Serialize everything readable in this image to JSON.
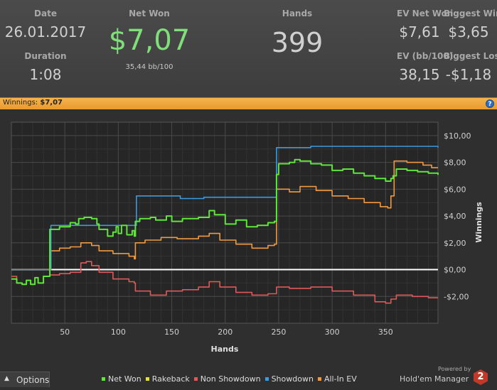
{
  "stats": {
    "date_label": "Date",
    "date_value": "26.01.2017",
    "duration_label": "Duration",
    "duration_value": "1:08",
    "net_won_label": "Net Won",
    "net_won_value": "$7,07",
    "bb_per_100": "35,44 bb/100",
    "hands_label": "Hands",
    "hands_value": "399",
    "ev_net_won_label": "EV Net Won",
    "ev_net_won_value": "$7,61",
    "biggest_win_label": "Biggest Win",
    "biggest_win_value": "$3,65",
    "ev_bb_label": "EV (bb/100)",
    "ev_bb_value": "38,15",
    "biggest_loss_label": "Biggest Loss",
    "biggest_loss_value": "-$1,18"
  },
  "bar": {
    "label": "Winnings:",
    "value": "$7,07",
    "help": "?"
  },
  "options_label": "Options",
  "brand": {
    "powered_by": "Powered by",
    "name": "Hold'em Manager",
    "logo": "2"
  },
  "colors": {
    "net_won": "#5ee63a",
    "rakeback": "#e8e03a",
    "non_showdown": "#e0585a",
    "showdown": "#3d9ade",
    "all_in_ev": "#ef9a42",
    "accent_green": "#7fe07a",
    "bar_orange": "#f0a640"
  },
  "chart_data": {
    "type": "line",
    "xlabel": "Hands",
    "ylabel": "Winnings",
    "xlim": [
      0,
      399
    ],
    "ylim": [
      -4,
      11
    ],
    "x_ticks": [
      50,
      100,
      150,
      200,
      250,
      300,
      350
    ],
    "y_ticks": [
      -2,
      0,
      2,
      4,
      6,
      8,
      10
    ],
    "y_tick_labels": [
      "-$2,00",
      "$0,00",
      "$2,00",
      "$4,00",
      "$6,00",
      "$8,00",
      "$10,00"
    ],
    "grid": true,
    "legend_position": "bottom",
    "series": [
      {
        "name": "Net Won",
        "key": "net_won",
        "points": [
          [
            0,
            -0.7
          ],
          [
            5,
            -1.0
          ],
          [
            10,
            -1.1
          ],
          [
            14,
            -0.8
          ],
          [
            18,
            -1.1
          ],
          [
            22,
            -0.6
          ],
          [
            25,
            -1.0
          ],
          [
            30,
            -0.5
          ],
          [
            35,
            -0.5
          ],
          [
            36,
            3.0
          ],
          [
            45,
            3.2
          ],
          [
            55,
            3.5
          ],
          [
            60,
            3.4
          ],
          [
            63,
            3.8
          ],
          [
            68,
            3.9
          ],
          [
            75,
            3.8
          ],
          [
            80,
            3.4
          ],
          [
            82,
            3.0
          ],
          [
            90,
            2.5
          ],
          [
            95,
            2.8
          ],
          [
            98,
            3.2
          ],
          [
            100,
            2.7
          ],
          [
            103,
            3.3
          ],
          [
            108,
            2.6
          ],
          [
            113,
            2.9
          ],
          [
            115,
            2.5
          ],
          [
            116,
            3.6
          ],
          [
            120,
            3.8
          ],
          [
            130,
            3.9
          ],
          [
            135,
            3.7
          ],
          [
            145,
            4.0
          ],
          [
            150,
            3.6
          ],
          [
            160,
            3.8
          ],
          [
            175,
            3.9
          ],
          [
            185,
            4.4
          ],
          [
            190,
            4.1
          ],
          [
            200,
            3.4
          ],
          [
            210,
            3.7
          ],
          [
            220,
            3.2
          ],
          [
            230,
            3.3
          ],
          [
            240,
            3.5
          ],
          [
            246,
            3.6
          ],
          [
            248,
            7.1
          ],
          [
            250,
            7.9
          ],
          [
            260,
            8.0
          ],
          [
            265,
            8.2
          ],
          [
            270,
            8.1
          ],
          [
            280,
            7.9
          ],
          [
            290,
            7.8
          ],
          [
            300,
            7.4
          ],
          [
            310,
            7.5
          ],
          [
            320,
            7.2
          ],
          [
            330,
            7.0
          ],
          [
            340,
            6.8
          ],
          [
            350,
            6.6
          ],
          [
            355,
            6.8
          ],
          [
            357,
            7.0
          ],
          [
            360,
            7.5
          ],
          [
            370,
            7.4
          ],
          [
            380,
            7.3
          ],
          [
            390,
            7.2
          ],
          [
            399,
            7.07
          ]
        ]
      },
      {
        "name": "Showdown",
        "key": "showdown",
        "points": [
          [
            0,
            0
          ],
          [
            36,
            0
          ],
          [
            37,
            3.3
          ],
          [
            60,
            3.3
          ],
          [
            116,
            3.3
          ],
          [
            117,
            5.5
          ],
          [
            155,
            5.5
          ],
          [
            158,
            5.3
          ],
          [
            180,
            5.4
          ],
          [
            247,
            5.4
          ],
          [
            248,
            9.1
          ],
          [
            270,
            9.1
          ],
          [
            280,
            9.2
          ],
          [
            399,
            9.1
          ]
        ]
      },
      {
        "name": "All-In EV",
        "key": "all_in_ev",
        "points": [
          [
            0,
            0
          ],
          [
            36,
            0
          ],
          [
            37,
            1.4
          ],
          [
            45,
            1.6
          ],
          [
            55,
            1.7
          ],
          [
            65,
            2.0
          ],
          [
            75,
            1.8
          ],
          [
            82,
            1.4
          ],
          [
            95,
            1.2
          ],
          [
            110,
            1.0
          ],
          [
            115,
            0.8
          ],
          [
            116,
            2.0
          ],
          [
            125,
            2.2
          ],
          [
            140,
            2.4
          ],
          [
            155,
            2.3
          ],
          [
            175,
            2.5
          ],
          [
            185,
            2.7
          ],
          [
            195,
            2.2
          ],
          [
            210,
            1.9
          ],
          [
            225,
            1.6
          ],
          [
            240,
            1.8
          ],
          [
            246,
            1.9
          ],
          [
            248,
            6.0
          ],
          [
            260,
            5.8
          ],
          [
            270,
            6.2
          ],
          [
            285,
            5.9
          ],
          [
            300,
            5.5
          ],
          [
            315,
            5.3
          ],
          [
            330,
            5.0
          ],
          [
            345,
            4.7
          ],
          [
            352,
            4.6
          ],
          [
            355,
            5.5
          ],
          [
            358,
            8.1
          ],
          [
            370,
            8.0
          ],
          [
            385,
            7.8
          ],
          [
            393,
            7.6
          ],
          [
            399,
            7.6
          ]
        ]
      },
      {
        "name": "Non Showdown",
        "key": "non_showdown",
        "points": [
          [
            0,
            -0.5
          ],
          [
            5,
            -1.0
          ],
          [
            10,
            -1.1
          ],
          [
            14,
            -0.8
          ],
          [
            18,
            -1.1
          ],
          [
            22,
            -0.6
          ],
          [
            25,
            -1.0
          ],
          [
            30,
            -0.5
          ],
          [
            36,
            -0.4
          ],
          [
            45,
            -0.3
          ],
          [
            55,
            -0.2
          ],
          [
            65,
            0.5
          ],
          [
            70,
            0.6
          ],
          [
            75,
            0.3
          ],
          [
            82,
            -0.2
          ],
          [
            95,
            -0.7
          ],
          [
            110,
            -0.9
          ],
          [
            115,
            -1.0
          ],
          [
            116,
            -1.6
          ],
          [
            130,
            -1.9
          ],
          [
            145,
            -1.6
          ],
          [
            160,
            -1.5
          ],
          [
            175,
            -1.3
          ],
          [
            185,
            -0.9
          ],
          [
            195,
            -1.3
          ],
          [
            210,
            -1.7
          ],
          [
            225,
            -1.9
          ],
          [
            240,
            -1.8
          ],
          [
            248,
            -1.3
          ],
          [
            260,
            -1.4
          ],
          [
            280,
            -1.3
          ],
          [
            300,
            -1.6
          ],
          [
            320,
            -1.9
          ],
          [
            340,
            -2.4
          ],
          [
            350,
            -2.5
          ],
          [
            355,
            -2.2
          ],
          [
            360,
            -1.9
          ],
          [
            375,
            -2.0
          ],
          [
            390,
            -2.1
          ],
          [
            399,
            -2.1
          ]
        ]
      },
      {
        "name": "Rakeback",
        "key": "rakeback",
        "points": []
      }
    ]
  },
  "legend": [
    {
      "name": "Net Won",
      "key": "net_won"
    },
    {
      "name": "Rakeback",
      "key": "rakeback"
    },
    {
      "name": "Non Showdown",
      "key": "non_showdown"
    },
    {
      "name": "Showdown",
      "key": "showdown"
    },
    {
      "name": "All-In EV",
      "key": "all_in_ev"
    }
  ]
}
